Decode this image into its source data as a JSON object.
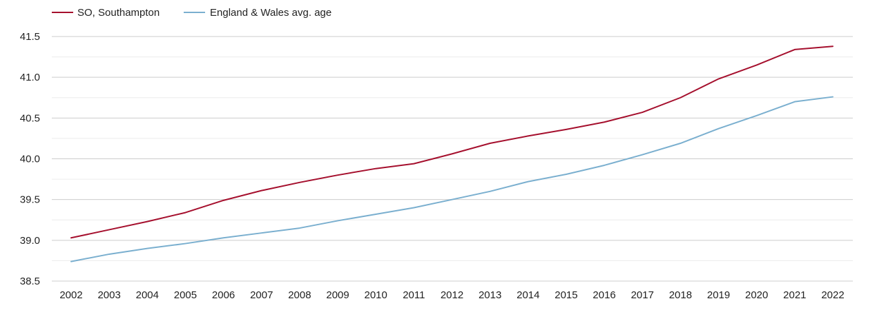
{
  "chart_data": {
    "type": "line",
    "title": "",
    "xlabel": "",
    "ylabel": "",
    "x": [
      "2002",
      "2003",
      "2004",
      "2005",
      "2006",
      "2007",
      "2008",
      "2009",
      "2010",
      "2011",
      "2012",
      "2013",
      "2014",
      "2015",
      "2016",
      "2017",
      "2018",
      "2019",
      "2020",
      "2021",
      "2022"
    ],
    "ylim": [
      38.5,
      41.5
    ],
    "yticks": [
      "38.5",
      "39.0",
      "39.5",
      "40.0",
      "40.5",
      "41.0",
      "41.5"
    ],
    "grid": true,
    "legend_position": "top-left",
    "series": [
      {
        "name": "SO, Southampton",
        "color": "#a50f2d",
        "values": [
          39.03,
          39.13,
          39.23,
          39.34,
          39.49,
          39.61,
          39.71,
          39.8,
          39.88,
          39.94,
          40.06,
          40.19,
          40.28,
          40.36,
          40.45,
          40.57,
          40.75,
          40.98,
          41.15,
          41.34,
          41.38
        ]
      },
      {
        "name": "England & Wales avg. age",
        "color": "#7aafcf",
        "values": [
          38.74,
          38.83,
          38.9,
          38.96,
          39.03,
          39.09,
          39.15,
          39.24,
          39.32,
          39.4,
          39.5,
          39.6,
          39.72,
          39.81,
          39.92,
          40.05,
          40.19,
          40.37,
          40.53,
          40.7,
          40.76
        ]
      }
    ]
  }
}
